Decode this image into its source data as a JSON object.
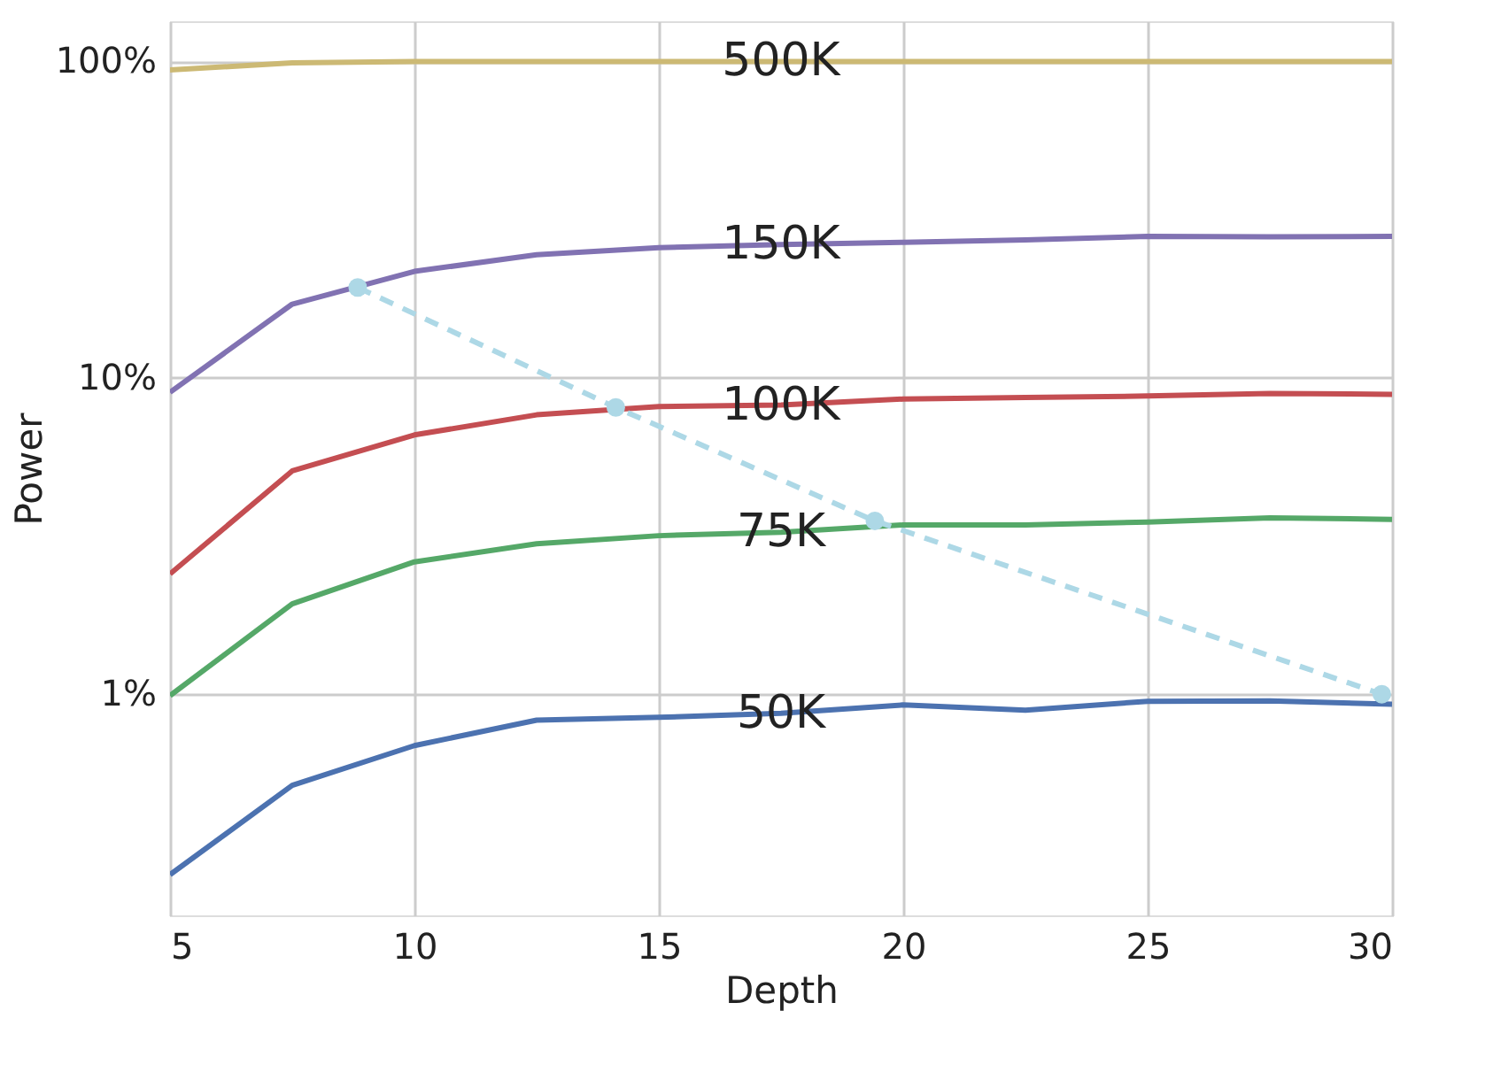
{
  "chart_data": {
    "type": "line",
    "xlabel": "Depth",
    "ylabel": "Power",
    "x": [
      5,
      7.5,
      10,
      12.5,
      15,
      17.5,
      20,
      22.5,
      25,
      27.5,
      30
    ],
    "series": [
      {
        "name": "500K",
        "color": "#ccb974",
        "values": [
          94,
          99,
          100,
          100,
          100,
          100,
          100,
          100,
          100,
          100,
          100
        ]
      },
      {
        "name": "150K",
        "color": "#8172b2",
        "values": [
          9.0,
          17.1,
          21.7,
          24.5,
          25.8,
          26.4,
          26.8,
          27.3,
          28.0,
          27.9,
          28.0
        ]
      },
      {
        "name": "100K",
        "color": "#c44e52",
        "values": [
          2.4,
          5.08,
          6.6,
          7.64,
          8.12,
          8.2,
          8.57,
          8.67,
          8.76,
          8.93,
          8.87
        ]
      },
      {
        "name": "75K",
        "color": "#55a868",
        "values": [
          0.99,
          1.93,
          2.62,
          2.99,
          3.17,
          3.25,
          3.43,
          3.43,
          3.5,
          3.61,
          3.57
        ]
      },
      {
        "name": "50K",
        "color": "#4c72b0",
        "values": [
          0.269,
          0.515,
          0.688,
          0.828,
          0.845,
          0.87,
          0.925,
          0.89,
          0.95,
          0.952,
          0.93
        ]
      },
      {
        "color": "#add8e6",
        "x": [
          8.84,
          14.12,
          19.42,
          29.79
        ],
        "values": [
          19.3,
          8.06,
          3.53,
          1.0
        ],
        "marker": "circle",
        "line_style": "dashed"
      }
    ],
    "log": true,
    "xlim": [
      5,
      30
    ],
    "xticks": [
      5,
      10,
      15,
      20,
      25,
      30
    ],
    "ylim": [
      0.2,
      134
    ],
    "yticks": [
      {
        "value": 1,
        "label": "1%"
      },
      {
        "value": 10,
        "label": "10%"
      },
      {
        "value": 100,
        "label": "100%"
      }
    ],
    "grid": true,
    "legend": false,
    "marker": "none",
    "line_style": "solid"
  }
}
